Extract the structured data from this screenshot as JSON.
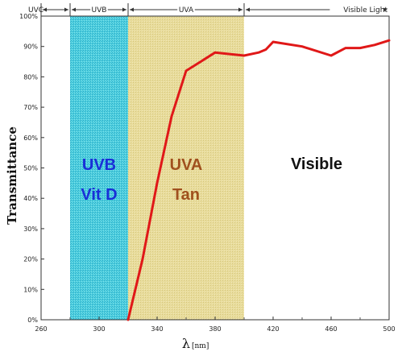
{
  "chart_data": {
    "type": "line",
    "xlabel": "λ",
    "xlabel_unit": "[nm]",
    "ylabel": "Transmittance",
    "xlim": [
      260,
      500
    ],
    "ylim": [
      0,
      100
    ],
    "x_ticks": [
      "260",
      "300",
      "340",
      "380",
      "420",
      "460",
      "500"
    ],
    "y_ticks": [
      "0%",
      "10%",
      "20%",
      "30%",
      "40%",
      "50%",
      "60%",
      "70%",
      "80%",
      "90%",
      "100%"
    ],
    "top_bands": [
      {
        "label": "UVC",
        "from": 260,
        "to": 280
      },
      {
        "label": "UVB",
        "from": 280,
        "to": 320
      },
      {
        "label": "UVA",
        "from": 320,
        "to": 400
      },
      {
        "label": "Visible Light",
        "from": 400,
        "to": 500
      }
    ],
    "regions": [
      {
        "from": 280,
        "to": 320,
        "color": "#3cc8d8",
        "line1": "UVB",
        "line2": "Vit D",
        "text_color": "#1a2fd8"
      },
      {
        "from": 320,
        "to": 400,
        "color": "#e6d896",
        "line1": "UVA",
        "line2": "Tan",
        "text_color": "#a0501e"
      },
      {
        "label": "Visible",
        "text_color": "#111111"
      }
    ],
    "series": [
      {
        "color": "#e01818",
        "x": [
          320,
          330,
          340,
          350,
          360,
          370,
          380,
          390,
          400,
          410,
          415,
          420,
          440,
          460,
          470,
          480,
          490,
          500
        ],
        "y": [
          0,
          20,
          45,
          67,
          82,
          85,
          88,
          87.5,
          87,
          88,
          89,
          91.5,
          90,
          87,
          89.5,
          89.5,
          90.5,
          92
        ]
      }
    ]
  }
}
